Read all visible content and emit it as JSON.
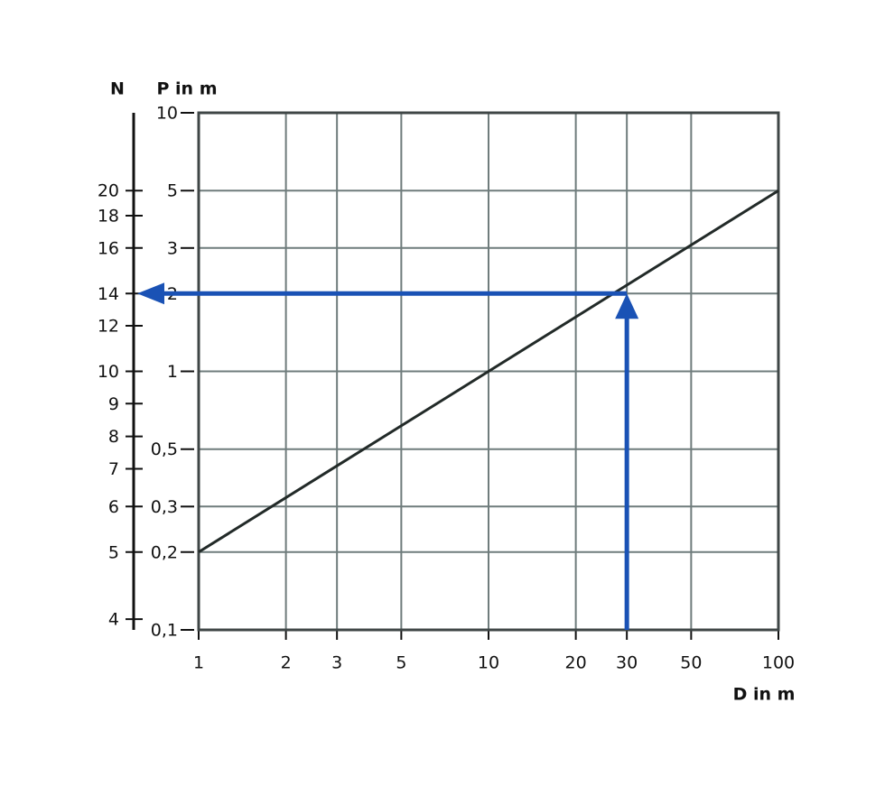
{
  "chart_data": {
    "type": "line",
    "x_label": "D in m",
    "y_label": "P in m",
    "n_label": "N",
    "log_x": true,
    "log_y": true,
    "grid": true,
    "xlim": [
      1,
      100
    ],
    "ylim": [
      0.1,
      10
    ],
    "xticks": [
      1,
      2,
      3,
      5,
      10,
      20,
      30,
      50,
      100
    ],
    "yticks": [
      {
        "value": 0.1,
        "label": "0,1"
      },
      {
        "value": 0.2,
        "label": "0,2"
      },
      {
        "value": 0.3,
        "label": "0,3"
      },
      {
        "value": 0.5,
        "label": "0,5"
      },
      1,
      2,
      3,
      5,
      10
    ],
    "series": [
      {
        "x": [
          1,
          100
        ],
        "values": [
          0.2,
          5
        ],
        "color": "#222a28"
      }
    ],
    "n_axis": {
      "ticks": [
        {
          "value": 20,
          "p": 5
        },
        {
          "value": 18,
          "p": 4
        },
        {
          "value": 16,
          "p": 3
        },
        {
          "value": 14,
          "p": 2
        },
        {
          "value": 12,
          "p": 1.5
        },
        {
          "value": 10,
          "p": 1
        },
        {
          "value": 9,
          "p": 0.75
        },
        {
          "value": 8,
          "p": 0.56
        },
        {
          "value": 7,
          "p": 0.42
        },
        {
          "value": 6,
          "p": 0.3
        },
        {
          "value": 5,
          "p": 0.2
        },
        {
          "value": 4,
          "p": 0.11
        }
      ]
    },
    "reading": {
      "x": 30,
      "y": 2,
      "color": "#1a52b5"
    }
  }
}
